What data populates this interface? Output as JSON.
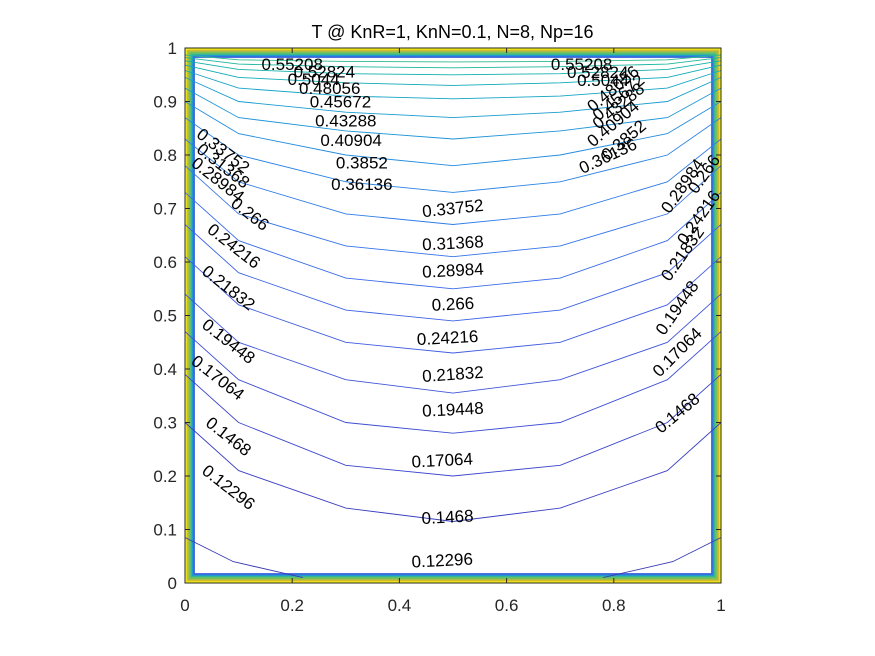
{
  "chart_data": {
    "type": "contour",
    "title": "T @ KnR=1, KnN=0.1, N=8, Np=16",
    "xlabel": "",
    "ylabel": "",
    "xlim": [
      0,
      1
    ],
    "ylim": [
      0,
      1
    ],
    "x_ticks": [
      "0",
      "0.2",
      "0.4",
      "0.6",
      "0.8",
      "1"
    ],
    "y_ticks": [
      "0",
      "0.1",
      "0.2",
      "0.3",
      "0.4",
      "0.5",
      "0.6",
      "0.7",
      "0.8",
      "0.9",
      "1"
    ],
    "grid": false,
    "colormap": "parula",
    "levels": [
      {
        "value": 0.12296,
        "label": "0.12296",
        "color": "#3a39b5",
        "points": [
          [
            0,
            0.085
          ],
          [
            0.09,
            0.04
          ],
          [
            0.22,
            0.01
          ]
        ],
        "points_right": [
          [
            0.78,
            0.01
          ],
          [
            0.91,
            0.04
          ],
          [
            1,
            0.085
          ]
        ],
        "center_y": 0.045
      },
      {
        "value": 0.1468,
        "label": "0.1468",
        "color": "#3a3fc2",
        "points": [
          [
            0,
            0.3
          ],
          [
            0.1,
            0.21
          ],
          [
            0.3,
            0.14
          ],
          [
            0.5,
            0.115
          ],
          [
            0.7,
            0.14
          ],
          [
            0.9,
            0.21
          ],
          [
            1,
            0.3
          ]
        ]
      },
      {
        "value": 0.17064,
        "label": "0.17064",
        "color": "#3c46cc",
        "points": [
          [
            0,
            0.39
          ],
          [
            0.1,
            0.3
          ],
          [
            0.3,
            0.22
          ],
          [
            0.5,
            0.2
          ],
          [
            0.7,
            0.22
          ],
          [
            0.9,
            0.3
          ],
          [
            1,
            0.39
          ]
        ]
      },
      {
        "value": 0.19448,
        "label": "0.19448",
        "color": "#3e4dd4",
        "points": [
          [
            0,
            0.47
          ],
          [
            0.1,
            0.38
          ],
          [
            0.3,
            0.3
          ],
          [
            0.5,
            0.28
          ],
          [
            0.7,
            0.3
          ],
          [
            0.9,
            0.38
          ],
          [
            1,
            0.47
          ]
        ]
      },
      {
        "value": 0.21832,
        "label": "0.21832",
        "color": "#3f55da",
        "points": [
          [
            0,
            0.54
          ],
          [
            0.1,
            0.45
          ],
          [
            0.3,
            0.38
          ],
          [
            0.5,
            0.355
          ],
          [
            0.7,
            0.38
          ],
          [
            0.9,
            0.45
          ],
          [
            1,
            0.54
          ]
        ]
      },
      {
        "value": 0.24216,
        "label": "0.24216",
        "color": "#3f5ce0",
        "points": [
          [
            0,
            0.61
          ],
          [
            0.1,
            0.52
          ],
          [
            0.3,
            0.45
          ],
          [
            0.5,
            0.43
          ],
          [
            0.7,
            0.45
          ],
          [
            0.9,
            0.52
          ],
          [
            1,
            0.61
          ]
        ]
      },
      {
        "value": 0.266,
        "label": "0.266",
        "color": "#3e64e5",
        "points": [
          [
            0,
            0.67
          ],
          [
            0.1,
            0.58
          ],
          [
            0.3,
            0.51
          ],
          [
            0.5,
            0.49
          ],
          [
            0.7,
            0.51
          ],
          [
            0.9,
            0.58
          ],
          [
            1,
            0.67
          ]
        ]
      },
      {
        "value": 0.28984,
        "label": "0.28984",
        "color": "#3a6ce8",
        "points": [
          [
            0,
            0.73
          ],
          [
            0.1,
            0.64
          ],
          [
            0.3,
            0.57
          ],
          [
            0.5,
            0.55
          ],
          [
            0.7,
            0.57
          ],
          [
            0.9,
            0.64
          ],
          [
            1,
            0.73
          ]
        ]
      },
      {
        "value": 0.31368,
        "label": "0.31368",
        "color": "#3574e9",
        "points": [
          [
            0,
            0.78
          ],
          [
            0.1,
            0.69
          ],
          [
            0.3,
            0.63
          ],
          [
            0.5,
            0.61
          ],
          [
            0.7,
            0.63
          ],
          [
            0.9,
            0.69
          ],
          [
            1,
            0.78
          ]
        ]
      },
      {
        "value": 0.33752,
        "label": "0.33752",
        "color": "#2f7ce8",
        "points": [
          [
            0,
            0.83
          ],
          [
            0.1,
            0.75
          ],
          [
            0.3,
            0.69
          ],
          [
            0.5,
            0.67
          ],
          [
            0.7,
            0.69
          ],
          [
            0.9,
            0.75
          ],
          [
            1,
            0.83
          ]
        ]
      },
      {
        "value": 0.36136,
        "label": "0.36136",
        "color": "#2a84e4",
        "points": [
          [
            0,
            0.87
          ],
          [
            0.1,
            0.8
          ],
          [
            0.3,
            0.75
          ],
          [
            0.5,
            0.73
          ],
          [
            0.7,
            0.75
          ],
          [
            0.9,
            0.8
          ],
          [
            1,
            0.87
          ]
        ]
      },
      {
        "value": 0.3852,
        "label": "0.3852",
        "color": "#238cdf",
        "points": [
          [
            0,
            0.9
          ],
          [
            0.1,
            0.84
          ],
          [
            0.3,
            0.8
          ],
          [
            0.5,
            0.78
          ],
          [
            0.7,
            0.8
          ],
          [
            0.9,
            0.84
          ],
          [
            1,
            0.9
          ]
        ]
      },
      {
        "value": 0.40904,
        "label": "0.40904",
        "color": "#1d94d8",
        "points": [
          [
            0,
            0.925
          ],
          [
            0.1,
            0.87
          ],
          [
            0.3,
            0.845
          ],
          [
            0.5,
            0.83
          ],
          [
            0.7,
            0.845
          ],
          [
            0.9,
            0.87
          ],
          [
            1,
            0.925
          ]
        ]
      },
      {
        "value": 0.43288,
        "label": "0.43288",
        "color": "#199cd0",
        "points": [
          [
            0,
            0.945
          ],
          [
            0.1,
            0.9
          ],
          [
            0.3,
            0.88
          ],
          [
            0.5,
            0.87
          ],
          [
            0.7,
            0.88
          ],
          [
            0.9,
            0.9
          ],
          [
            1,
            0.945
          ]
        ]
      },
      {
        "value": 0.45672,
        "label": "0.45672",
        "color": "#14a4c4",
        "points": [
          [
            0,
            0.958
          ],
          [
            0.1,
            0.925
          ],
          [
            0.3,
            0.91
          ],
          [
            0.5,
            0.905
          ],
          [
            0.7,
            0.91
          ],
          [
            0.9,
            0.925
          ],
          [
            1,
            0.958
          ]
        ]
      },
      {
        "value": 0.48056,
        "label": "0.48056",
        "color": "#0fabb8",
        "points": [
          [
            0,
            0.968
          ],
          [
            0.1,
            0.945
          ],
          [
            0.3,
            0.935
          ],
          [
            0.5,
            0.93
          ],
          [
            0.7,
            0.935
          ],
          [
            0.9,
            0.945
          ],
          [
            1,
            0.968
          ]
        ]
      },
      {
        "value": 0.5044,
        "label": "0.5044",
        "color": "#12b1aa",
        "points": [
          [
            0,
            0.976
          ],
          [
            0.1,
            0.96
          ],
          [
            0.3,
            0.952
          ],
          [
            0.5,
            0.95
          ],
          [
            0.7,
            0.952
          ],
          [
            0.9,
            0.96
          ],
          [
            1,
            0.976
          ]
        ]
      },
      {
        "value": 0.52824,
        "label": "0.52824",
        "color": "#1db69c",
        "points": [
          [
            0,
            0.982
          ],
          [
            0.1,
            0.97
          ],
          [
            0.3,
            0.965
          ],
          [
            0.5,
            0.963
          ],
          [
            0.7,
            0.965
          ],
          [
            0.9,
            0.97
          ],
          [
            1,
            0.982
          ]
        ]
      },
      {
        "value": 0.55208,
        "label": "0.55208",
        "color": "#2cbb8d",
        "points": [
          [
            0,
            0.987
          ],
          [
            0.1,
            0.978
          ],
          [
            0.3,
            0.975
          ],
          [
            0.5,
            0.974
          ],
          [
            0.7,
            0.975
          ],
          [
            0.9,
            0.978
          ],
          [
            1,
            0.987
          ]
        ]
      }
    ],
    "labels": [
      {
        "text": "0.55208",
        "x": 0.2,
        "y": 0.967,
        "angle": 0
      },
      {
        "text": "0.52824",
        "x": 0.26,
        "y": 0.953,
        "angle": 0
      },
      {
        "text": "0.5044",
        "x": 0.24,
        "y": 0.939,
        "angle": 0
      },
      {
        "text": "0.48056",
        "x": 0.27,
        "y": 0.922,
        "angle": 0
      },
      {
        "text": "0.45672",
        "x": 0.29,
        "y": 0.897,
        "angle": 0
      },
      {
        "text": "0.43288",
        "x": 0.3,
        "y": 0.862,
        "angle": 0
      },
      {
        "text": "0.40904",
        "x": 0.31,
        "y": 0.825,
        "angle": 0
      },
      {
        "text": "0.3852",
        "x": 0.33,
        "y": 0.783,
        "angle": 0
      },
      {
        "text": "0.36136",
        "x": 0.33,
        "y": 0.743,
        "angle": 0
      },
      {
        "text": "0.33752",
        "x": 0.5,
        "y": 0.698,
        "angle": -6
      },
      {
        "text": "0.31368",
        "x": 0.5,
        "y": 0.633,
        "angle": -3
      },
      {
        "text": "0.28984",
        "x": 0.5,
        "y": 0.582,
        "angle": -3
      },
      {
        "text": "0.266",
        "x": 0.5,
        "y": 0.519,
        "angle": -3
      },
      {
        "text": "0.24216",
        "x": 0.49,
        "y": 0.456,
        "angle": -3
      },
      {
        "text": "0.21832",
        "x": 0.5,
        "y": 0.388,
        "angle": -4
      },
      {
        "text": "0.19448",
        "x": 0.5,
        "y": 0.322,
        "angle": -3
      },
      {
        "text": "0.17064",
        "x": 0.48,
        "y": 0.227,
        "angle": -3
      },
      {
        "text": "0.1468",
        "x": 0.49,
        "y": 0.121,
        "angle": -3
      },
      {
        "text": "0.12296",
        "x": 0.48,
        "y": 0.04,
        "angle": -3
      },
      {
        "text": "0.33752",
        "x": 0.07,
        "y": 0.806,
        "angle": 38
      },
      {
        "text": "0.31368",
        "x": 0.07,
        "y": 0.778,
        "angle": 38
      },
      {
        "text": "0.28984",
        "x": 0.06,
        "y": 0.752,
        "angle": 38
      },
      {
        "text": "0.266",
        "x": 0.12,
        "y": 0.688,
        "angle": 38
      },
      {
        "text": "0.24216",
        "x": 0.09,
        "y": 0.628,
        "angle": 38
      },
      {
        "text": "0.21832",
        "x": 0.08,
        "y": 0.55,
        "angle": 38
      },
      {
        "text": "0.19448",
        "x": 0.08,
        "y": 0.45,
        "angle": 38
      },
      {
        "text": "0.17064",
        "x": 0.06,
        "y": 0.382,
        "angle": 38
      },
      {
        "text": "0.1468",
        "x": 0.08,
        "y": 0.272,
        "angle": 38
      },
      {
        "text": "0.12296",
        "x": 0.08,
        "y": 0.177,
        "angle": 38
      },
      {
        "text": "0.55208",
        "x": 0.74,
        "y": 0.967,
        "angle": 0
      },
      {
        "text": "0.52824",
        "x": 0.77,
        "y": 0.952,
        "angle": 0
      },
      {
        "text": "0.5044",
        "x": 0.78,
        "y": 0.937,
        "angle": 0
      },
      {
        "text": "0.48056",
        "x": 0.8,
        "y": 0.922,
        "angle": -40
      },
      {
        "text": "0.45672",
        "x": 0.81,
        "y": 0.906,
        "angle": -40
      },
      {
        "text": "0.43288",
        "x": 0.81,
        "y": 0.89,
        "angle": -40
      },
      {
        "text": "0.40904",
        "x": 0.8,
        "y": 0.857,
        "angle": -40
      },
      {
        "text": "0.3852",
        "x": 0.82,
        "y": 0.826,
        "angle": -40
      },
      {
        "text": "0.36136",
        "x": 0.79,
        "y": 0.796,
        "angle": -25
      },
      {
        "text": "0.28984",
        "x": 0.93,
        "y": 0.741,
        "angle": -55
      },
      {
        "text": "0.266",
        "x": 0.97,
        "y": 0.763,
        "angle": -55
      },
      {
        "text": "0.24216",
        "x": 0.96,
        "y": 0.682,
        "angle": -55
      },
      {
        "text": "0.21832",
        "x": 0.93,
        "y": 0.614,
        "angle": -55
      },
      {
        "text": "0.19448",
        "x": 0.92,
        "y": 0.513,
        "angle": -55
      },
      {
        "text": "0.17064",
        "x": 0.92,
        "y": 0.43,
        "angle": -45
      },
      {
        "text": "0.1468",
        "x": 0.92,
        "y": 0.316,
        "angle": -40
      }
    ]
  },
  "colors": {
    "boundary_outer": "#f9fb0e",
    "boundary_inner": "#3d5fe0",
    "axes": "#262626",
    "background": "#ffffff"
  }
}
